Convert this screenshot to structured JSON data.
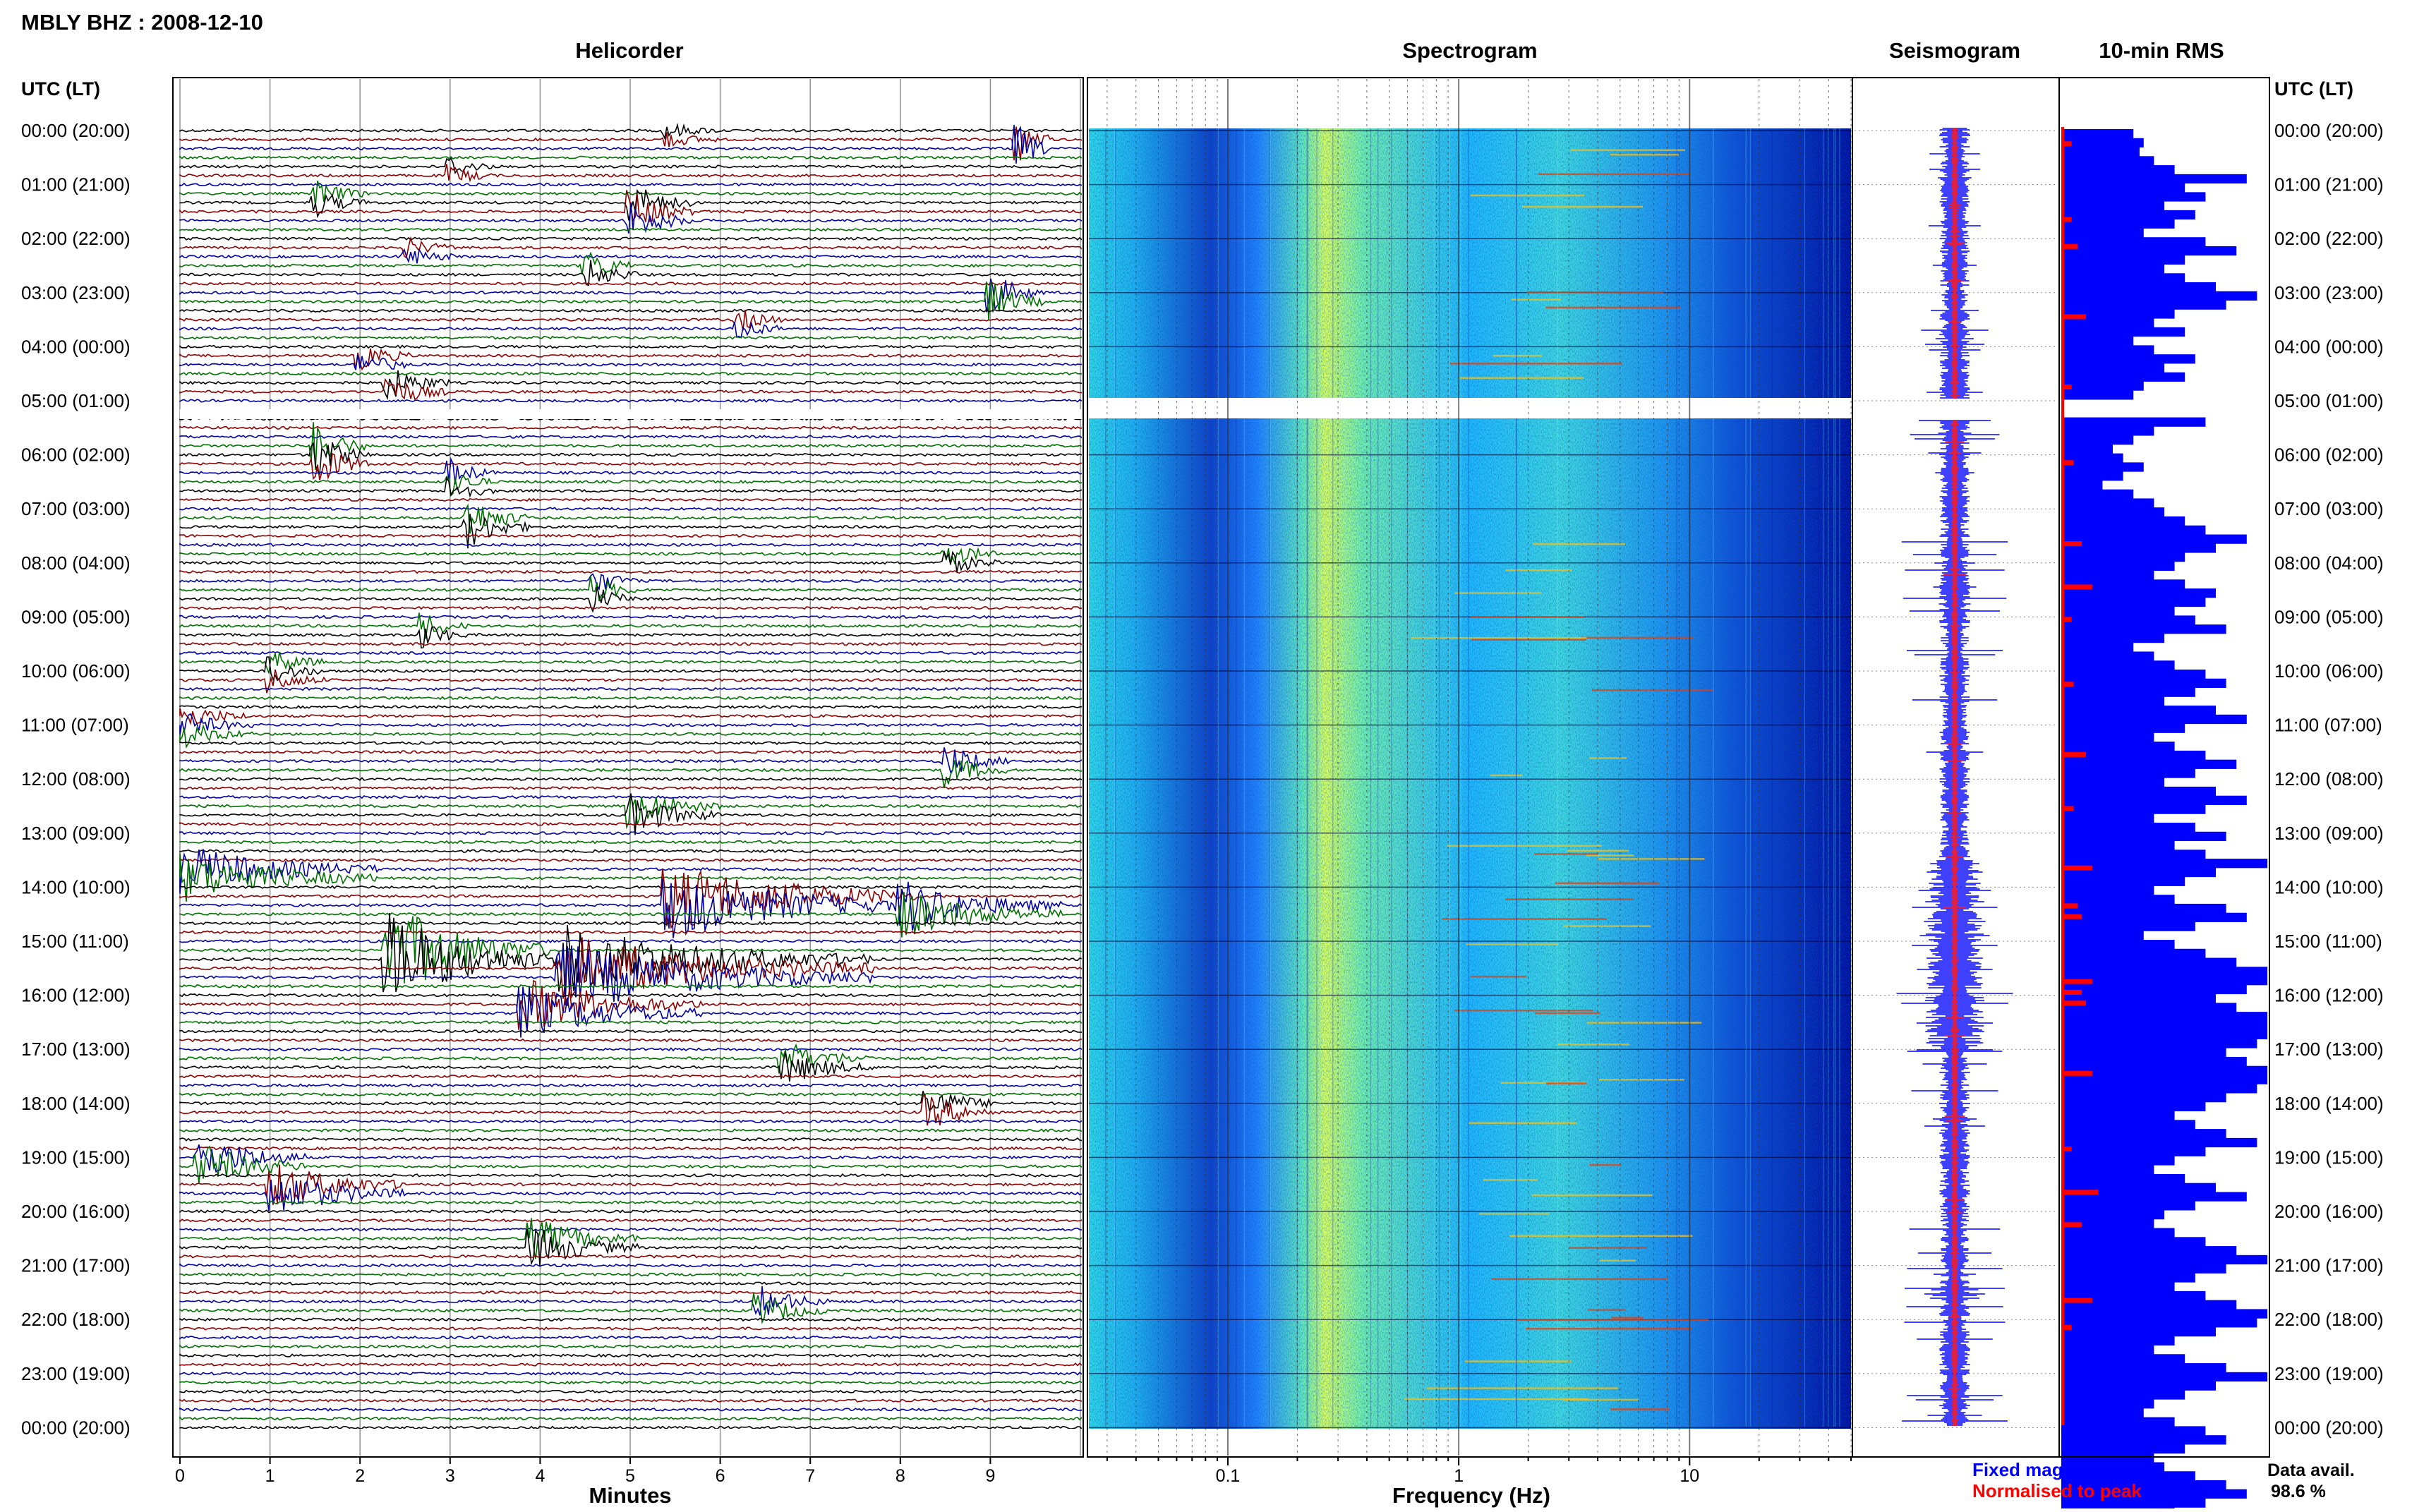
{
  "header": {
    "station_title": "MBLY BHZ : 2008-12-10",
    "utc_label_left": "UTC (LT)",
    "utc_label_right": "UTC (LT)"
  },
  "panels": {
    "helicorder": "Helicorder",
    "spectrogram": "Spectrogram",
    "seismogram": "Seismogram",
    "rms": "10-min RMS"
  },
  "axes": {
    "minutes_label": "Minutes",
    "minutes_ticks": [
      "0",
      "1",
      "2",
      "3",
      "4",
      "5",
      "6",
      "7",
      "8",
      "9"
    ],
    "frequency_label": "Frequency (Hz)",
    "frequency_ticks": [
      "0.1",
      "1",
      "10"
    ]
  },
  "time_labels": [
    "00:00 (20:00)",
    "01:00 (21:00)",
    "02:00 (22:00)",
    "03:00 (23:00)",
    "04:00 (00:00)",
    "05:00 (01:00)",
    "06:00 (02:00)",
    "07:00 (03:00)",
    "08:00 (04:00)",
    "09:00 (05:00)",
    "10:00 (06:00)",
    "11:00 (07:00)",
    "12:00 (08:00)",
    "13:00 (09:00)",
    "14:00 (10:00)",
    "15:00 (11:00)",
    "16:00 (12:00)",
    "17:00 (13:00)",
    "18:00 (14:00)",
    "19:00 (15:00)",
    "20:00 (16:00)",
    "21:00 (17:00)",
    "22:00 (18:00)",
    "23:00 (19:00)",
    "00:00 (20:00)"
  ],
  "legend": {
    "fixed": "Fixed magnification",
    "normalised": "Normalised to peak",
    "fixed_color": "#0000ff",
    "normalised_color": "#ff0000"
  },
  "data_availability": {
    "label": "Data avail.",
    "value": "98.6 %"
  },
  "colors": {
    "trace_cycle": [
      "#000000",
      "#8b0000",
      "#0000a0",
      "#007000"
    ],
    "rms_fixed": "#0000ff",
    "rms_normalised": "#ff0000",
    "spectrogram_low": "#00007a",
    "spectrogram_mid": "#20c8ff",
    "spectrogram_high": "#d0ff40",
    "spectrogram_peak": "#c00000"
  },
  "chart_data": [
    {
      "type": "line",
      "name": "helicorder",
      "x_range_minutes": [
        0,
        10
      ],
      "rows_per_hour": 6,
      "hours": 24,
      "gap_utc_hours": [
        5.0,
        5.33
      ],
      "events": [
        {
          "hour": 0.1,
          "minute": 5.4,
          "amp": 1.2,
          "dur": 0.6
        },
        {
          "hour": 0.3,
          "minute": 9.3,
          "amp": 3.5,
          "dur": 0.4
        },
        {
          "hour": 0.7,
          "minute": 3.0,
          "amp": 1.5,
          "dur": 0.5
        },
        {
          "hour": 1.3,
          "minute": 1.5,
          "amp": 2.0,
          "dur": 0.6
        },
        {
          "hour": 1.5,
          "minute": 5.0,
          "amp": 3.0,
          "dur": 0.7
        },
        {
          "hour": 2.2,
          "minute": 2.5,
          "amp": 1.5,
          "dur": 0.6
        },
        {
          "hour": 2.6,
          "minute": 4.5,
          "amp": 2.5,
          "dur": 0.6
        },
        {
          "hour": 3.1,
          "minute": 9.0,
          "amp": 3.0,
          "dur": 0.6
        },
        {
          "hour": 3.6,
          "minute": 6.2,
          "amp": 1.8,
          "dur": 0.5
        },
        {
          "hour": 4.2,
          "minute": 2.0,
          "amp": 2.0,
          "dur": 0.6
        },
        {
          "hour": 4.7,
          "minute": 2.3,
          "amp": 2.5,
          "dur": 0.7
        },
        {
          "hour": 6.0,
          "minute": 1.5,
          "amp": 3.5,
          "dur": 0.6
        },
        {
          "hour": 6.5,
          "minute": 3.0,
          "amp": 2.0,
          "dur": 0.5
        },
        {
          "hour": 7.2,
          "minute": 3.2,
          "amp": 3.0,
          "dur": 0.7
        },
        {
          "hour": 7.9,
          "minute": 8.5,
          "amp": 2.0,
          "dur": 0.6
        },
        {
          "hour": 8.5,
          "minute": 4.6,
          "amp": 2.0,
          "dur": 0.5
        },
        {
          "hour": 9.3,
          "minute": 2.7,
          "amp": 2.0,
          "dur": 0.5
        },
        {
          "hour": 10.0,
          "minute": 1.0,
          "amp": 2.0,
          "dur": 0.6
        },
        {
          "hour": 11.0,
          "minute": 0.0,
          "amp": 2.0,
          "dur": 0.8
        },
        {
          "hour": 11.8,
          "minute": 8.5,
          "amp": 2.5,
          "dur": 0.7
        },
        {
          "hour": 12.6,
          "minute": 5.0,
          "amp": 3.0,
          "dur": 1.0
        },
        {
          "hour": 13.8,
          "minute": 0.0,
          "amp": 3.5,
          "dur": 2.2
        },
        {
          "hour": 14.2,
          "minute": 5.4,
          "amp": 5.0,
          "dur": 2.8
        },
        {
          "hour": 14.4,
          "minute": 8.0,
          "amp": 3.5,
          "dur": 1.8
        },
        {
          "hour": 15.2,
          "minute": 2.3,
          "amp": 7.0,
          "dur": 1.8
        },
        {
          "hour": 15.5,
          "minute": 4.2,
          "amp": 5.0,
          "dur": 3.5
        },
        {
          "hour": 16.2,
          "minute": 3.8,
          "amp": 4.0,
          "dur": 2.0
        },
        {
          "hour": 17.3,
          "minute": 6.7,
          "amp": 2.5,
          "dur": 1.0
        },
        {
          "hour": 18.1,
          "minute": 8.3,
          "amp": 2.5,
          "dur": 0.8
        },
        {
          "hour": 19.1,
          "minute": 0.2,
          "amp": 3.5,
          "dur": 1.2
        },
        {
          "hour": 19.6,
          "minute": 1.0,
          "amp": 3.5,
          "dur": 1.5
        },
        {
          "hour": 20.6,
          "minute": 3.9,
          "amp": 3.0,
          "dur": 1.2
        },
        {
          "hour": 21.7,
          "minute": 6.4,
          "amp": 2.5,
          "dur": 0.8
        }
      ]
    },
    {
      "type": "heatmap",
      "name": "spectrogram",
      "x_scale": "log",
      "x_range_hz": [
        0.025,
        50
      ],
      "hours": 24,
      "gap_utc_hours": [
        5.0,
        5.33
      ],
      "bright_band_hz": [
        0.2,
        0.35
      ],
      "harmonic_lines_hz": [
        1.7,
        2.2,
        3.0,
        4.3,
        6.1
      ]
    },
    {
      "type": "line",
      "name": "seismogram",
      "hours": 24,
      "series": [
        {
          "name": "Fixed magnification",
          "color": "#0000ff"
        },
        {
          "name": "Normalised to peak",
          "color": "#ff0000"
        }
      ]
    },
    {
      "type": "bar",
      "name": "10-min RMS",
      "orientation": "horizontal",
      "bins_per_hour": 6,
      "hours": 24,
      "gap_utc_hours": [
        5.0,
        5.33
      ],
      "fixed_values": [
        0.35,
        0.4,
        0.38,
        0.45,
        0.55,
        0.9,
        0.6,
        0.7,
        0.5,
        0.65,
        0.55,
        0.4,
        0.7,
        0.85,
        0.6,
        0.5,
        0.6,
        0.75,
        0.95,
        0.8,
        0.55,
        0.45,
        0.6,
        0.35,
        0.45,
        0.65,
        0.5,
        0.6,
        0.4,
        0.35,
        0.55,
        0.6,
        0.7,
        0.45,
        0.35,
        0.25,
        0.3,
        0.4,
        0.3,
        0.2,
        0.35,
        0.45,
        0.5,
        0.6,
        0.7,
        0.9,
        0.75,
        0.6,
        0.55,
        0.45,
        0.6,
        0.75,
        0.7,
        0.55,
        0.65,
        0.8,
        0.5,
        0.35,
        0.45,
        0.55,
        0.7,
        0.8,
        0.65,
        0.5,
        0.75,
        0.9,
        0.6,
        0.45,
        0.55,
        0.7,
        0.85,
        0.65,
        0.5,
        0.75,
        0.9,
        0.7,
        0.45,
        0.65,
        0.8,
        0.55,
        0.7,
        1.0,
        0.75,
        0.6,
        0.45,
        0.55,
        0.8,
        0.9,
        0.65,
        0.4,
        0.55,
        0.7,
        0.85,
        1.0,
        1.0,
        0.9,
        0.75,
        0.85,
        1.0,
        1.0,
        1.0,
        0.95,
        0.8,
        0.9,
        1.0,
        1.0,
        0.95,
        0.8,
        0.7,
        0.55,
        0.65,
        0.8,
        0.95,
        0.7,
        0.55,
        0.45,
        0.6,
        0.75,
        0.9,
        0.65,
        0.5,
        0.45,
        0.55,
        0.7,
        0.85,
        1.0,
        0.8,
        0.65,
        0.55,
        0.7,
        0.85,
        1.0,
        0.95,
        0.75,
        0.55,
        0.45,
        0.6,
        0.8,
        1.0,
        0.75,
        0.6,
        0.45,
        0.4,
        0.55,
        0.7,
        0.8,
        0.6,
        0.45,
        0.5,
        0.65,
        0.8,
        0.9,
        0.7,
        0.55,
        0.45,
        0.4,
        0.5,
        0.65,
        0.4,
        0.3
      ],
      "normalised_peaks_hour": [
        0.2,
        1.6,
        2.1,
        3.4,
        4.7,
        6.1,
        7.6,
        8.4,
        9.0,
        10.2,
        11.5,
        12.5,
        13.6,
        14.3,
        14.5,
        15.7,
        15.9,
        16.1,
        17.4,
        18.8,
        19.6,
        20.2,
        21.6,
        22.1
      ],
      "normalised_values": [
        0.05,
        0.05,
        0.08,
        0.12,
        0.05,
        0.06,
        0.1,
        0.15,
        0.05,
        0.06,
        0.12,
        0.06,
        0.15,
        0.08,
        0.1,
        0.15,
        0.1,
        0.12,
        0.15,
        0.05,
        0.18,
        0.1,
        0.15,
        0.05
      ]
    }
  ]
}
